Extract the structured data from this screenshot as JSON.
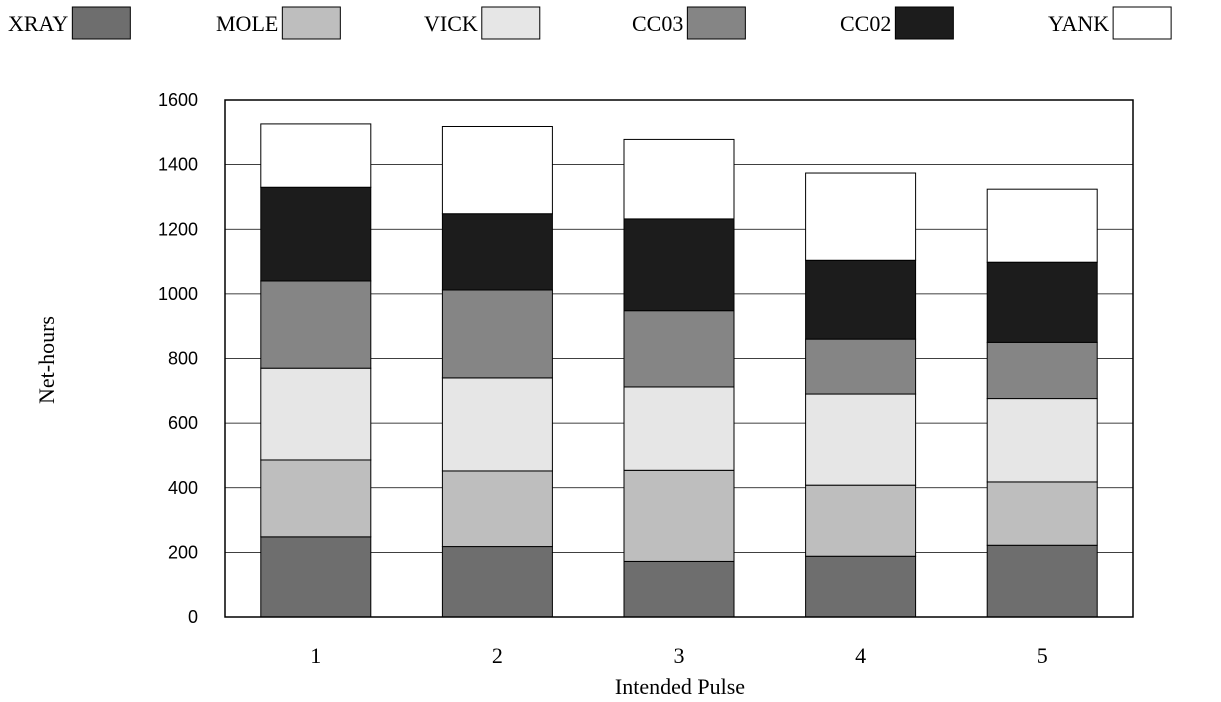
{
  "chart_data": {
    "type": "bar",
    "stacked": true,
    "categories": [
      "1",
      "2",
      "3",
      "4",
      "5"
    ],
    "series": [
      {
        "name": "XRAY",
        "color": "#6e6e6e",
        "values": [
          248,
          218,
          172,
          188,
          222
        ]
      },
      {
        "name": "MOLE",
        "color": "#bebebe",
        "values": [
          238,
          234,
          282,
          220,
          196
        ]
      },
      {
        "name": "VICK",
        "color": "#e6e6e6",
        "values": [
          284,
          288,
          258,
          282,
          258
        ]
      },
      {
        "name": "CC03",
        "color": "#858585",
        "values": [
          270,
          272,
          236,
          170,
          174
        ]
      },
      {
        "name": "CC02",
        "color": "#1c1c1c",
        "values": [
          290,
          236,
          284,
          244,
          248
        ]
      },
      {
        "name": "YANK",
        "color": "#ffffff",
        "values": [
          196,
          270,
          246,
          270,
          226
        ]
      }
    ],
    "xlabel": "Intended Pulse",
    "ylabel": "Net-hours",
    "ylim": [
      0,
      1600
    ],
    "yticks": [
      0,
      200,
      400,
      600,
      800,
      1000,
      1200,
      1400,
      1600
    ],
    "grid": true,
    "legend_position": "top"
  }
}
